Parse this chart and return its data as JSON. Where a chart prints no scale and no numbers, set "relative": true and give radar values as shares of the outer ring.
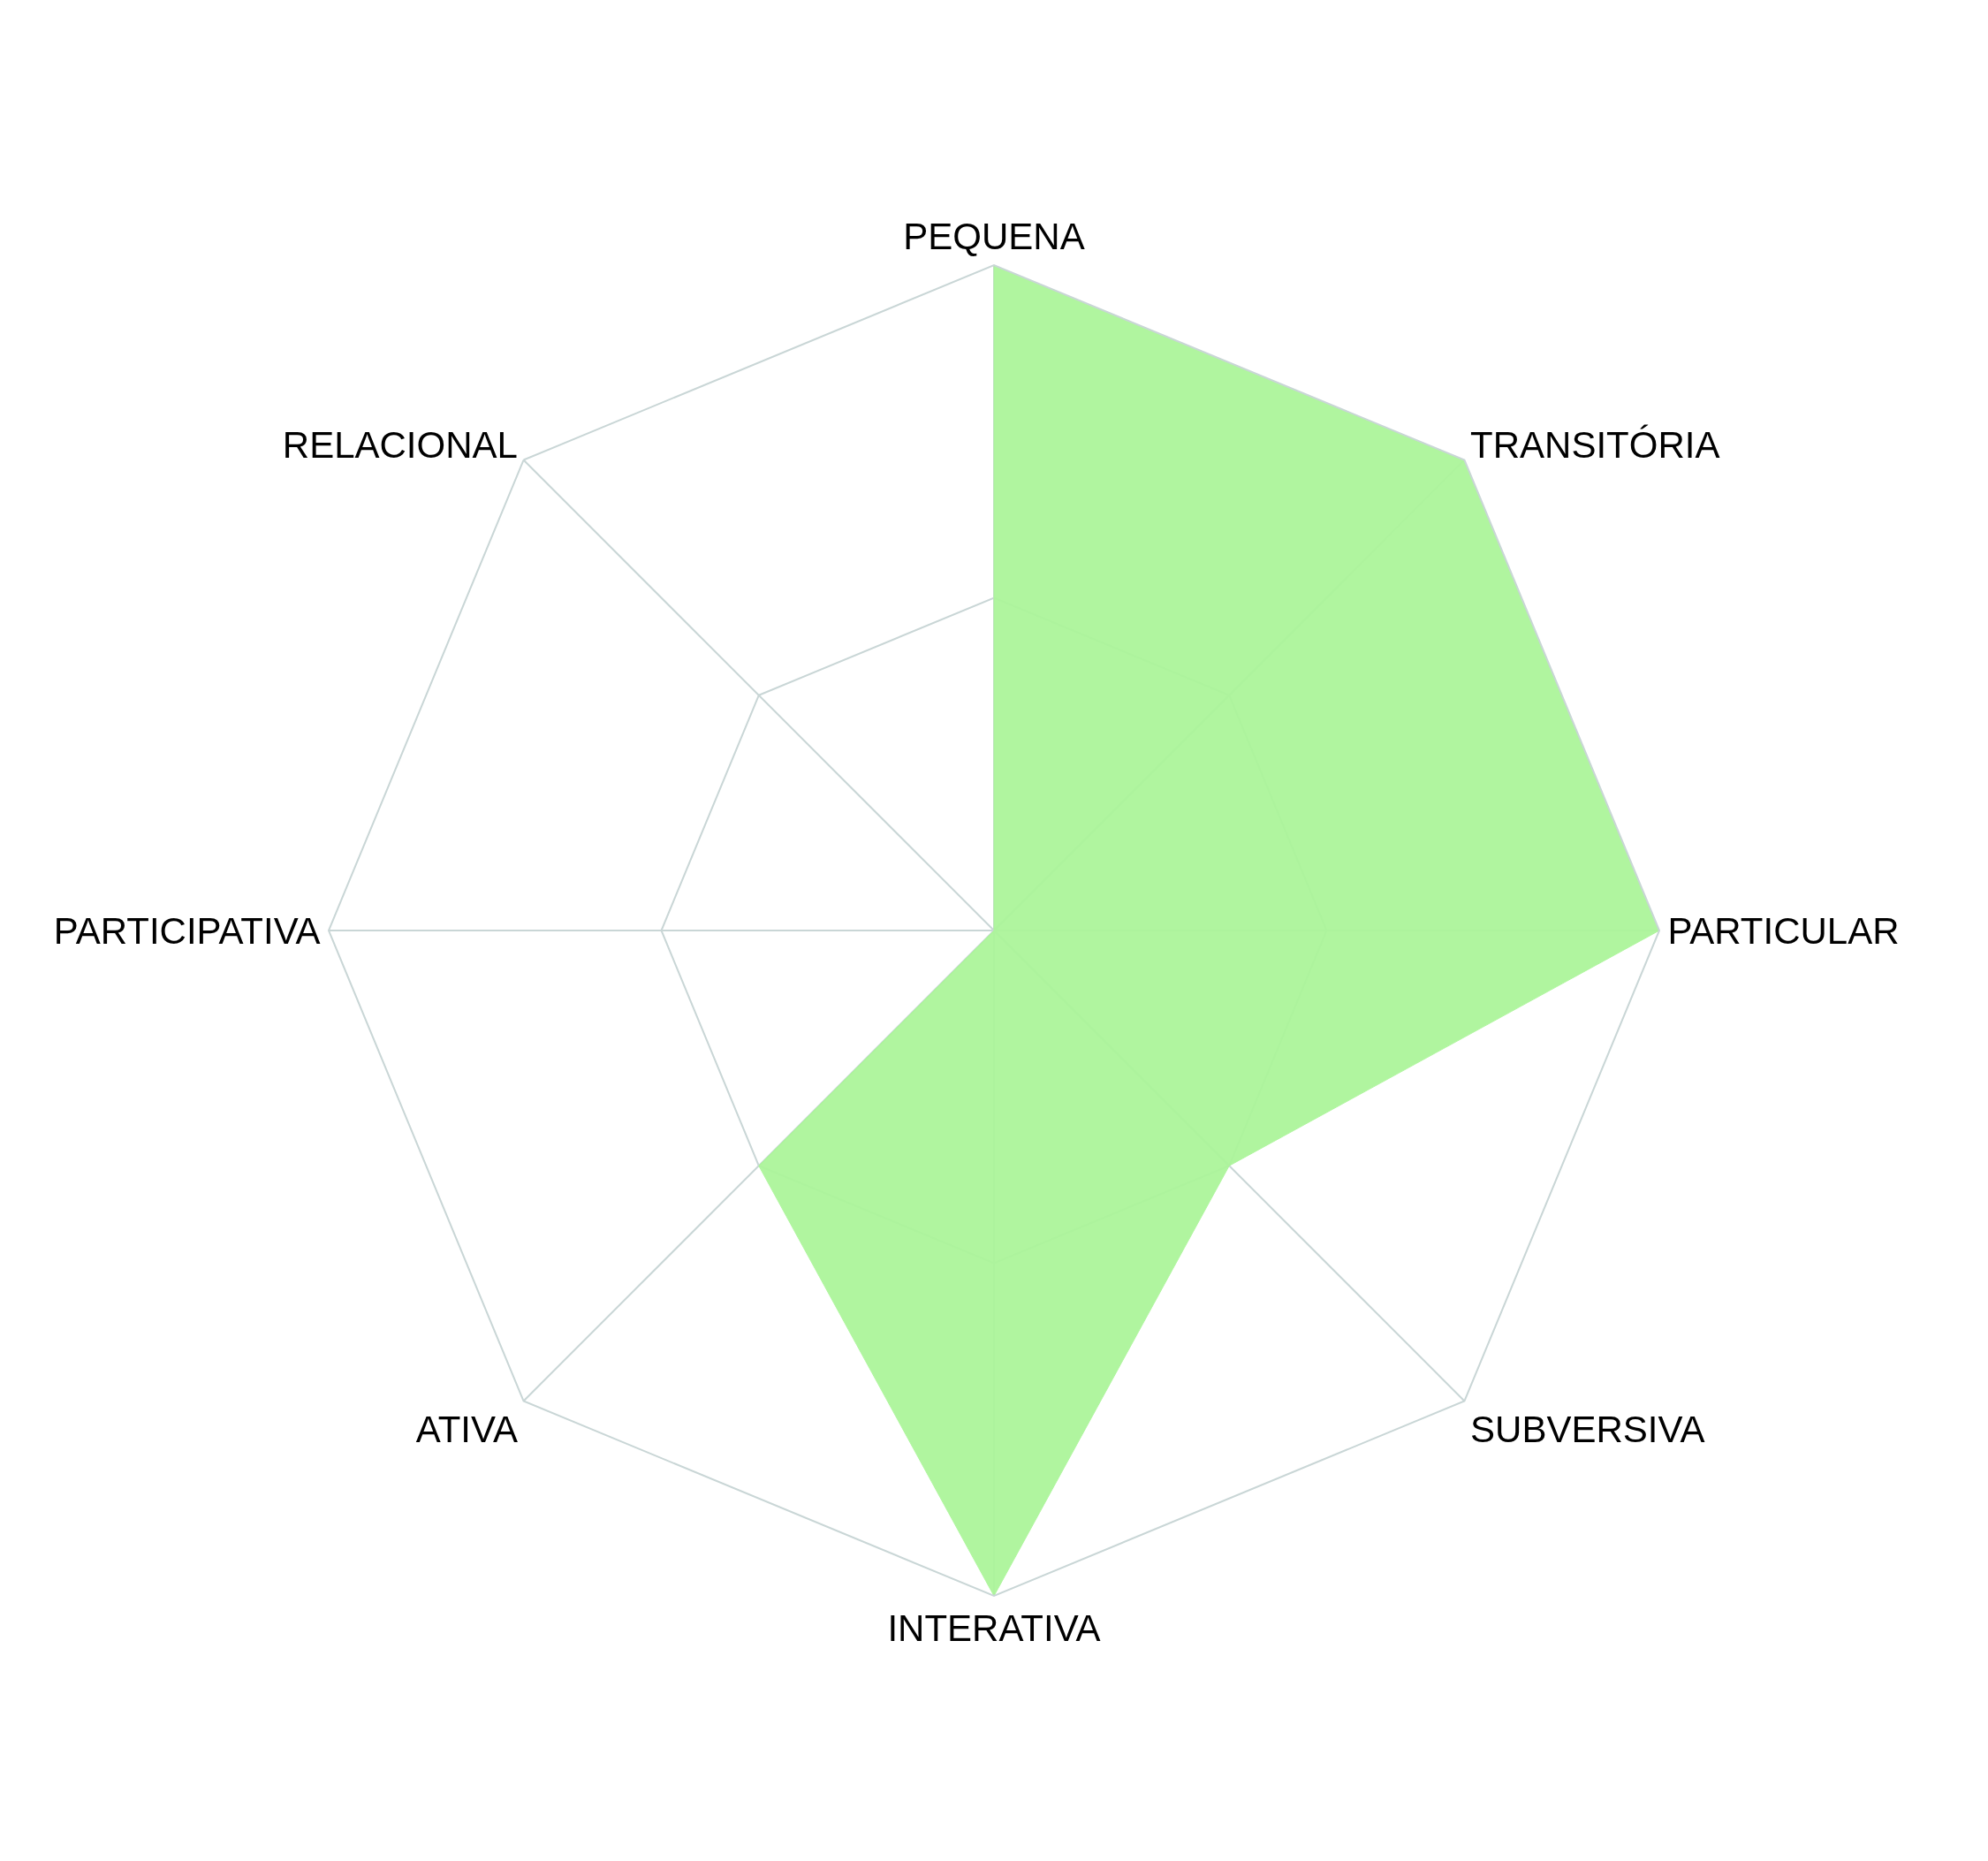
{
  "chart_data": {
    "type": "radar",
    "relative": true,
    "grid": true,
    "categories": [
      "PEQUENA",
      "TRANSITÓRIA",
      "PARTICULAR",
      "SUBVERSIVA",
      "INTERATIVA",
      "ATIVA",
      "PARTICIPATIVA",
      "RELACIONAL"
    ],
    "series": [
      {
        "color": "#acf59a",
        "values": [
          1,
          1,
          1,
          0.5,
          1,
          0.5,
          0,
          0
        ]
      }
    ]
  }
}
